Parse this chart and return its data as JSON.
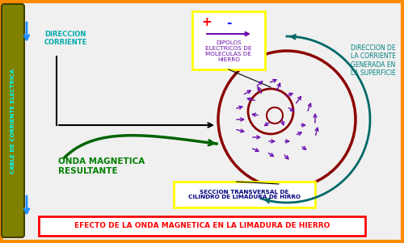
{
  "background_color": "#f0f0f0",
  "outer_border_color": "#ff8c00",
  "cable_color": "#808000",
  "cable_text": "CABLE DE CORRIENTE ELECTRICA",
  "cable_text_color": "#00ffff",
  "current_arrow_color": "#1e90ff",
  "direction_text": "DIRECCION\nCORRIENTE",
  "direction_text_color": "#00aaaa",
  "wave_arrow_color": "#006400",
  "wave_text": "ONDA MAGNETICA\nRESULTANTE",
  "wave_text_color": "#008000",
  "circle_color": "#8b0000",
  "arrow_color": "#6a0dad",
  "dipole_box_color": "#ffff00",
  "dipole_plus_color": "#ff0000",
  "dipole_minus_color": "#0000ff",
  "dipole_arrow_color": "#6a0dad",
  "dipole_text": "DIPOLOS\nELECTRICOS DE\nMOLECULAS DE\nHIERRO",
  "dipole_text_color": "#6a0dad",
  "surface_text": "DIRECCION DE\nLA CORRIENTE\nGENERADA EN\nLA SUPERFICIE",
  "surface_text_color": "#008080",
  "section_text": "SECCION TRANSVERSAL DE\nCILINDRO DE LIMADURA DE HIRRO",
  "section_box_color": "#ffff00",
  "section_text_color": "#000080",
  "bottom_text": "EFECTO DE LA ONDA MAGNETICA EN LA LIMADURA DE HIERRO",
  "bottom_box_color": "#ff0000",
  "bottom_text_color": "#ff0000",
  "surface_arrow_color": "#006868",
  "line_color": "#000000"
}
